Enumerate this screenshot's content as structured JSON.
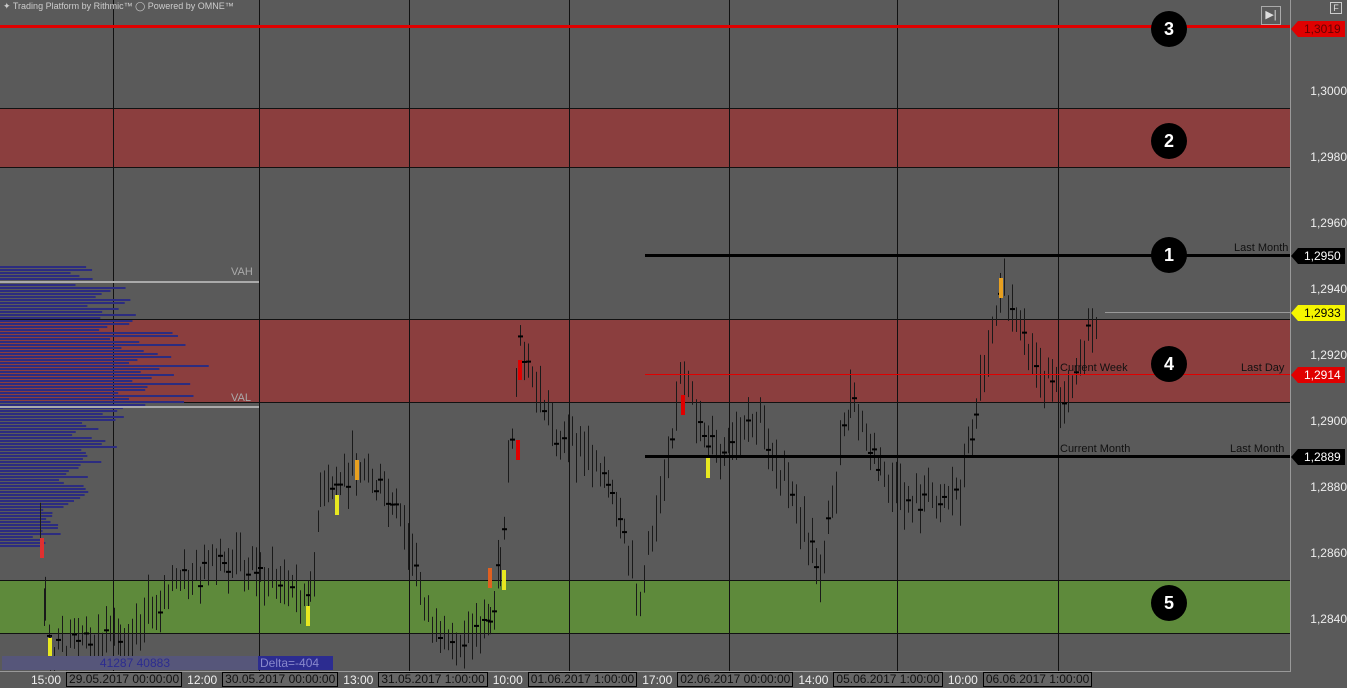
{
  "header": {
    "brand": "Trading Platform by Rithmic™",
    "powered": "Powered by OMNE™",
    "button_f": "F"
  },
  "colors": {
    "background": "#5a5a5a",
    "resistance_band": "#8b3e3e",
    "support_band": "#5e8a3b",
    "profile": "#2c2c80",
    "red_line": "#e00000"
  },
  "price_axis": [
    "1,3000",
    "1,2980",
    "1,2960",
    "1,2940",
    "1,2920",
    "1,2900",
    "1,2880",
    "1,2860",
    "1,2840"
  ],
  "price_tags": {
    "top": "1,3019",
    "last_month": "1,2950",
    "current": "1,2933",
    "last_day": "1,2914",
    "current_month": "1,2889"
  },
  "levels": {
    "last_month": "Last Month",
    "current_week": "Current Week",
    "last_day": "Last Day",
    "current_month": "Current Month",
    "last_month_2": "Last Month",
    "vah": "VAH",
    "val": "VAL"
  },
  "markers": [
    "1",
    "2",
    "3",
    "4",
    "5"
  ],
  "profile": {
    "volume_left": "41287",
    "volume_right": "40883",
    "delta": "Delta=-404"
  },
  "time_axis": {
    "labels": [
      "15:00",
      "12:00",
      "13:00",
      "10:00",
      "17:00",
      "14:00",
      "10:00"
    ],
    "boxes": [
      "29.05.2017 00:00:00",
      "30.05.2017 00:00:00",
      "31.05.2017 1:00:00",
      "01.06.2017 1:00:00",
      "02.06.2017 00:00:00",
      "05.06.2017 1:00:00",
      "06.06.2017 1:00:00"
    ]
  }
}
